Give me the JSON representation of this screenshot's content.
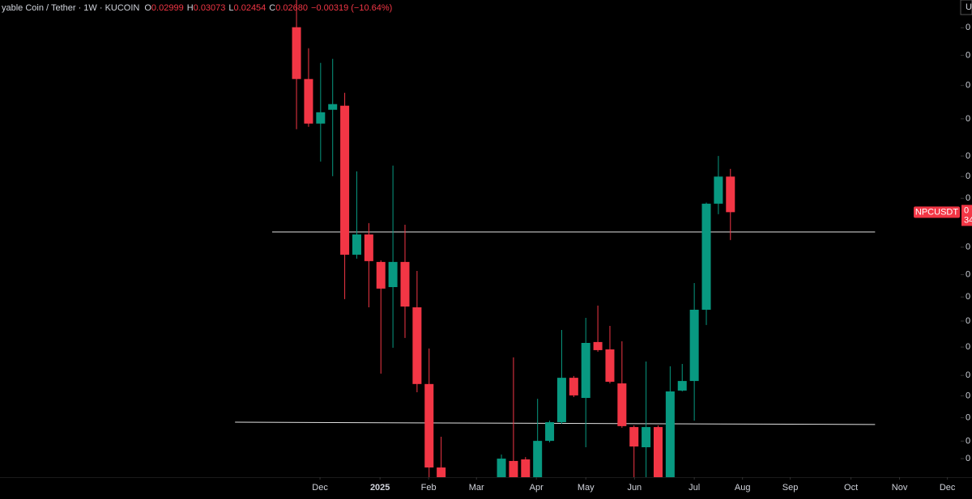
{
  "chart_data": {
    "type": "candlestick",
    "header": {
      "symbol": "yable Coin / Tether · 1W · KUCOIN",
      "ohlc": [
        {
          "label": "O",
          "value": "0.02999"
        },
        {
          "label": "H",
          "value": "0.03073"
        },
        {
          "label": "L",
          "value": "0.02454"
        },
        {
          "label": "C",
          "value": "0.02680"
        }
      ],
      "change": "−0.00319 (−10.64%)"
    },
    "corner_text": "U",
    "up_color": "#089981",
    "down_color": "#f23645",
    "log_scale": true,
    "candles": {
      "x": [
        0,
        1,
        2,
        3,
        4,
        5,
        6,
        7,
        8,
        9,
        10,
        11,
        12,
        17,
        18,
        19,
        20,
        21,
        22,
        23,
        24,
        25,
        26,
        27,
        28,
        29,
        30,
        31,
        32,
        33,
        34,
        35,
        36
      ],
      "open": [
        0.04808,
        0.04082,
        0.03546,
        0.03704,
        0.03752,
        0.02343,
        0.02498,
        0.0229,
        0.02115,
        0.0229,
        0.01984,
        0.01557,
        0.01196,
        0.0113,
        0.01221,
        0.01227,
        0.0113,
        0.01301,
        0.0138,
        0.01588,
        0.0149,
        0.01778,
        0.01737,
        0.0156,
        0.01359,
        0.01275,
        0.01359,
        0.0113,
        0.01525,
        0.01572,
        0.01969,
        0.02753,
        0.02999
      ],
      "high": [
        0.0538,
        0.04499,
        0.04296,
        0.04351,
        0.03908,
        0.03049,
        0.02589,
        0.02302,
        0.03105,
        0.02576,
        0.02226,
        0.01742,
        0.01318,
        0.01246,
        0.01694,
        0.01236,
        0.01486,
        0.01387,
        0.01847,
        0.01597,
        0.01919,
        0.01995,
        0.01871,
        0.01782,
        0.01366,
        0.01672,
        0.01366,
        0.01647,
        0.01659,
        0.02142,
        0.02762,
        0.03201,
        0.03073
      ],
      "low": [
        0.03483,
        0.0351,
        0.03145,
        0.03003,
        0.02036,
        0.02314,
        0.01984,
        0.01609,
        0.01746,
        0.01801,
        0.01517,
        0.01145,
        0.011,
        0.011,
        0.011,
        0.011,
        0.011,
        0.01295,
        0.01373,
        0.01494,
        0.01275,
        0.01724,
        0.0156,
        0.01356,
        0.0116,
        0.0116,
        0.011,
        0.011,
        0.01521,
        0.01387,
        0.01876,
        0.02663,
        0.02454
      ],
      "close": [
        0.04082,
        0.03546,
        0.03675,
        0.03771,
        0.02343,
        0.02498,
        0.02296,
        0.02105,
        0.0229,
        0.01989,
        0.01557,
        0.01196,
        0.0113,
        0.0123,
        0.0113,
        0.0113,
        0.01301,
        0.0138,
        0.01588,
        0.01502,
        0.01773,
        0.01733,
        0.01568,
        0.01363,
        0.01278,
        0.01359,
        0.0113,
        0.01521,
        0.01572,
        0.01969,
        0.02753,
        0.02999,
        0.0268
      ]
    },
    "lines": [
      {
        "x": [
          -2.02,
          48.0
        ],
        "y": [
          0.02517,
          0.02517
        ]
      },
      {
        "x": [
          -5.1,
          48.0
        ],
        "y": [
          0.0138,
          0.0137
        ]
      }
    ],
    "xlim": [
      -24.6,
      55.1
    ],
    "xticks": [
      {
        "value": 1.95,
        "label": "Dec"
      },
      {
        "value": 6.93,
        "label": "2025"
      },
      {
        "value": 10.96,
        "label": "Feb"
      },
      {
        "value": 14.93,
        "label": "Mar"
      },
      {
        "value": 19.9,
        "label": "Apr"
      },
      {
        "value": 24.0,
        "label": "May"
      },
      {
        "value": 28.04,
        "label": "Jun"
      },
      {
        "value": 33.0,
        "label": "Jul"
      },
      {
        "value": 37.0,
        "label": "Aug"
      },
      {
        "value": 40.96,
        "label": "Sep"
      },
      {
        "value": 46.0,
        "label": "Oct"
      },
      {
        "value": 50.03,
        "label": "Nov"
      },
      {
        "value": 54.0,
        "label": "Dec"
      }
    ],
    "ylim": [
      0.0116,
      0.0524
    ],
    "yticks": [
      {
        "value": 0.048,
        "label": "0"
      },
      {
        "value": 0.044,
        "label": "0"
      },
      {
        "value": 0.04,
        "label": "0"
      },
      {
        "value": 0.036,
        "label": "0"
      },
      {
        "value": 0.032,
        "label": "0"
      },
      {
        "value": 0.03,
        "label": "0"
      },
      {
        "value": 0.028,
        "label": "0"
      },
      {
        "value": 0.024,
        "label": "0"
      },
      {
        "value": 0.022,
        "label": "0"
      },
      {
        "value": 0.0205,
        "label": "0"
      },
      {
        "value": 0.019,
        "label": "0"
      },
      {
        "value": 0.0175,
        "label": "0"
      },
      {
        "value": 0.016,
        "label": "0"
      },
      {
        "value": 0.015,
        "label": "0"
      },
      {
        "value": 0.014,
        "label": "0"
      },
      {
        "value": 0.013,
        "label": "0"
      },
      {
        "value": 0.0123,
        "label": "0"
      }
    ],
    "price_tag": {
      "symbol": "NPCUSDT",
      "value_text": "0",
      "countdown": "34"
    }
  }
}
